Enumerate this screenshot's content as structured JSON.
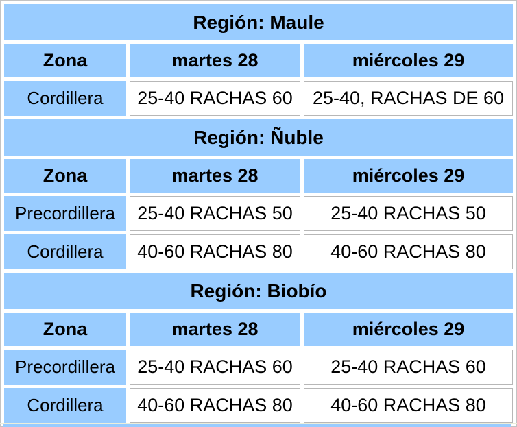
{
  "colors": {
    "cell_blue": "#99ccff",
    "table_border": "#c3c3c3",
    "value_cell_border": "#b7b7b7",
    "divider_cream": "#eceedb",
    "text": "#000000",
    "background": "#ffffff"
  },
  "chart_data": [
    {
      "type": "table",
      "title": "Región: Maule",
      "columns": [
        "Zona",
        "martes 28",
        "miércoles 29"
      ],
      "rows": [
        [
          "Cordillera",
          "25-40 RACHAS 60",
          "25-40, RACHAS DE 60"
        ]
      ]
    },
    {
      "type": "table",
      "title": "Región: Ñuble",
      "columns": [
        "Zona",
        "martes 28",
        "miércoles 29"
      ],
      "rows": [
        [
          "Precordillera",
          "25-40 RACHAS 50",
          "25-40 RACHAS 50"
        ],
        [
          "Cordillera",
          "40-60 RACHAS 80",
          "40-60 RACHAS 80"
        ]
      ]
    },
    {
      "type": "table",
      "title": "Región: Biobío",
      "columns": [
        "Zona",
        "martes 28",
        "miércoles 29"
      ],
      "rows": [
        [
          "Precordillera",
          "25-40 RACHAS 60",
          "25-40 RACHAS 60"
        ],
        [
          "Cordillera",
          "40-60 RACHAS 80",
          "40-60 RACHAS 80"
        ]
      ]
    }
  ]
}
